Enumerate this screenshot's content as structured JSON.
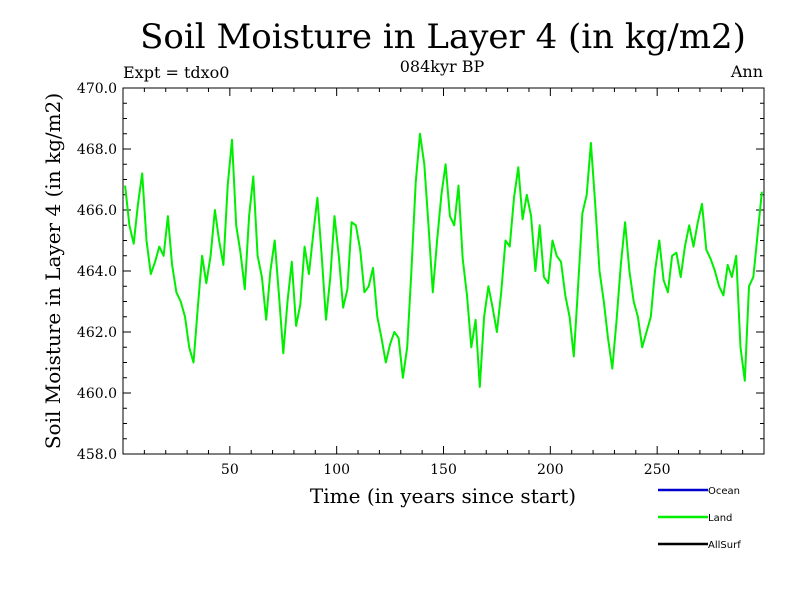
{
  "chart_data": {
    "type": "line",
    "title": "Soil Moisture in Layer 4 (in kg/m2)",
    "subtitle_left": "Expt = tdxo0",
    "subtitle_center": "084kyr BP",
    "subtitle_right": "Ann",
    "xlabel": "Time (in years since start)",
    "ylabel": "Soil Moisture in Layer 4 (in kg/m2)",
    "xlim": [
      0,
      300
    ],
    "ylim": [
      458,
      470
    ],
    "x_ticks": [
      50,
      100,
      150,
      200,
      250
    ],
    "x_tick_labels": [
      "50",
      "100",
      "150",
      "200",
      "250"
    ],
    "y_ticks": [
      458,
      460,
      462,
      464,
      466,
      468,
      470
    ],
    "y_tick_labels": [
      "458.0",
      "460.0",
      "462.0",
      "464.0",
      "466.0",
      "468.0",
      "470.0"
    ],
    "legend": [
      {
        "name": "Ocean",
        "color": "#0000cc"
      },
      {
        "name": "Land",
        "color": "#00ee00"
      },
      {
        "name": "AllSurf",
        "color": "#000000"
      }
    ],
    "legend_placement": "bottom-right",
    "series": [
      {
        "name": "Land",
        "color": "#00ee00",
        "x": [
          1,
          3,
          5,
          7,
          9,
          11,
          13,
          15,
          17,
          19,
          21,
          23,
          25,
          27,
          29,
          31,
          33,
          35,
          37,
          39,
          41,
          43,
          45,
          47,
          49,
          51,
          53,
          55,
          57,
          59,
          61,
          63,
          65,
          67,
          69,
          71,
          73,
          75,
          77,
          79,
          81,
          83,
          85,
          87,
          89,
          91,
          93,
          95,
          97,
          99,
          101,
          103,
          105,
          107,
          109,
          111,
          113,
          115,
          117,
          119,
          121,
          123,
          125,
          127,
          129,
          131,
          133,
          135,
          137,
          139,
          141,
          143,
          145,
          147,
          149,
          151,
          153,
          155,
          157,
          159,
          161,
          163,
          165,
          167,
          169,
          171,
          173,
          175,
          177,
          179,
          181,
          183,
          185,
          187,
          189,
          191,
          193,
          195,
          197,
          199,
          201,
          203,
          205,
          207,
          209,
          211,
          213,
          215,
          217,
          219,
          221,
          223,
          225,
          227,
          229,
          231,
          233,
          235,
          237,
          239,
          241,
          243,
          245,
          247,
          249,
          251,
          253,
          255,
          257,
          259,
          261,
          263,
          265,
          267,
          269,
          271,
          273,
          275,
          277,
          279,
          281,
          283,
          285,
          287,
          289,
          291,
          293,
          295,
          297,
          299
        ],
        "values": [
          466.8,
          465.5,
          464.9,
          466.2,
          467.2,
          465.0,
          463.9,
          464.3,
          464.8,
          464.5,
          465.8,
          464.2,
          463.3,
          463.0,
          462.5,
          461.5,
          461.0,
          462.8,
          464.5,
          463.6,
          464.5,
          466.0,
          465.0,
          464.2,
          466.8,
          468.3,
          465.5,
          464.6,
          463.4,
          465.8,
          467.1,
          464.5,
          463.8,
          462.4,
          464.0,
          465.0,
          463.2,
          461.3,
          463.0,
          464.3,
          462.2,
          462.9,
          464.8,
          463.9,
          465.2,
          466.4,
          464.5,
          462.4,
          463.8,
          465.8,
          464.5,
          462.8,
          463.4,
          465.6,
          465.5,
          464.7,
          463.3,
          463.5,
          464.1,
          462.5,
          461.8,
          461.0,
          461.6,
          462.0,
          461.8,
          460.5,
          461.5,
          464.0,
          466.9,
          468.5,
          467.5,
          465.5,
          463.3,
          465.0,
          466.5,
          467.5,
          465.8,
          465.5,
          466.8,
          464.4,
          463.2,
          461.5,
          462.4,
          460.2,
          462.5,
          463.5,
          462.8,
          462.0,
          463.3,
          465.0,
          464.8,
          466.4,
          467.4,
          465.7,
          466.5,
          465.8,
          464.0,
          465.5,
          463.8,
          463.6,
          465.0,
          464.5,
          464.3,
          463.2,
          462.5,
          461.2,
          463.5,
          465.9,
          466.5,
          468.2,
          466.2,
          464.0,
          463.0,
          461.8,
          460.8,
          462.4,
          464.2,
          465.6,
          464.0,
          463.0,
          462.5,
          461.5,
          462.0,
          462.5,
          464.0,
          465.0,
          463.7,
          463.3,
          464.5,
          464.6,
          463.8,
          464.8,
          465.5,
          464.8,
          465.6,
          466.2,
          464.7,
          464.4,
          464.0,
          463.5,
          463.2,
          464.2,
          463.8,
          464.5,
          461.5,
          460.4,
          463.5,
          463.8,
          465.2,
          466.6
        ],
        "note": ""
      }
    ]
  }
}
